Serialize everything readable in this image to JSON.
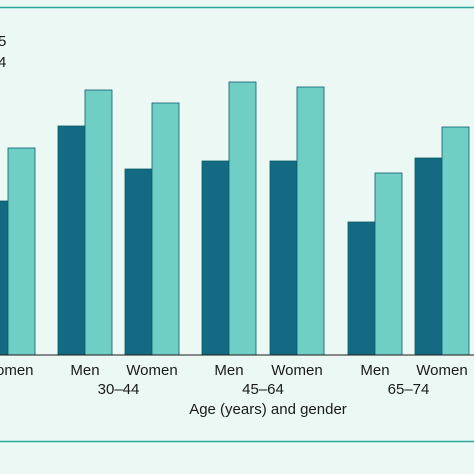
{
  "colors": {
    "background": "#ebf8f4",
    "border": "#2aa79d",
    "series_dark": "#136a82",
    "series_light": "#6fcfc4",
    "bar_outline": "#0e5b6b",
    "text": "#1a1a1a"
  },
  "legend": {
    "entry_1_fragment": "5",
    "entry_2_fragment": "4"
  },
  "chart_data": {
    "type": "bar",
    "xlabel": "Age (years) and gender",
    "ylabel": "",
    "title": "",
    "categories": [
      "omen",
      "Men",
      "Women",
      "Men",
      "Women",
      "Men",
      "Women"
    ],
    "age_groups": [
      {
        "label": "30–44",
        "categories": [
          1,
          2
        ]
      },
      {
        "label": "45–64",
        "categories": [
          3,
          4
        ]
      },
      {
        "label": "65–74",
        "categories": [
          5,
          6
        ]
      }
    ],
    "series": [
      {
        "values": [
          154,
          229,
          186,
          194,
          194,
          133,
          197
        ]
      },
      {
        "values": [
          207,
          265,
          252,
          273,
          268,
          182,
          228
        ]
      }
    ],
    "ylim": [
      0,
      360
    ],
    "grid": false,
    "legend_position": "top-left"
  }
}
